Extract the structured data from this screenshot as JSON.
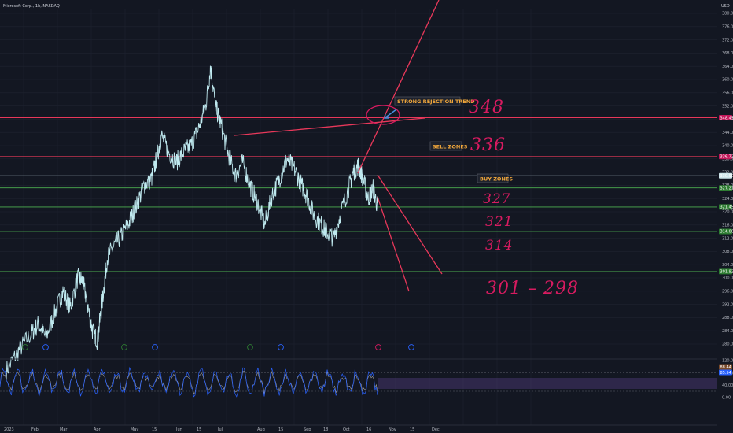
{
  "header": {
    "symbol": "Microsoft Corp., 1h, NASDAQ",
    "currency": "USD"
  },
  "colors": {
    "background": "#131722",
    "price_line": "#bfe9ef",
    "resistance": "#e8385a",
    "support": "#4caf50",
    "hand": "#d81b60",
    "annot_text": "#f2a83b",
    "osc_fast": "#2962ff",
    "osc_slow": "#9e9e9e",
    "osc_band": "#7e57c2"
  },
  "chart_data": [
    {
      "type": "line",
      "title": "",
      "series": [
        {
          "name": "",
          "points": [
            [
              0.0,
              272
            ],
            [
              0.5,
              278
            ],
            [
              1.0,
              283
            ],
            [
              1.3,
              286
            ],
            [
              1.6,
              282
            ],
            [
              2.0,
              290
            ],
            [
              2.3,
              296
            ],
            [
              2.6,
              291
            ],
            [
              2.9,
              300
            ],
            [
              3.1,
              299
            ],
            [
              3.3,
              292
            ],
            [
              3.5,
              284
            ],
            [
              3.7,
              281
            ],
            [
              3.9,
              293
            ],
            [
              4.1,
              306
            ],
            [
              4.4,
              310
            ],
            [
              4.7,
              313
            ],
            [
              5.0,
              317
            ],
            [
              5.3,
              322
            ],
            [
              5.6,
              328
            ],
            [
              5.9,
              330
            ],
            [
              6.1,
              336
            ],
            [
              6.3,
              343
            ],
            [
              6.6,
              338
            ],
            [
              6.9,
              335
            ],
            [
              7.2,
              338
            ],
            [
              7.5,
              340
            ],
            [
              7.8,
              345
            ],
            [
              8.1,
              352
            ],
            [
              8.3,
              364
            ],
            [
              8.5,
              352
            ],
            [
              8.7,
              347
            ],
            [
              9.0,
              338
            ],
            [
              9.3,
              331
            ],
            [
              9.6,
              335
            ],
            [
              9.9,
              328
            ],
            [
              10.2,
              323
            ],
            [
              10.5,
              316
            ],
            [
              10.8,
              325
            ],
            [
              11.1,
              330
            ],
            [
              11.4,
              336
            ],
            [
              11.7,
              333
            ],
            [
              12.0,
              328
            ],
            [
              12.2,
              325
            ],
            [
              12.5,
              319
            ],
            [
              12.8,
              316
            ],
            [
              13.0,
              314
            ],
            [
              13.3,
              312
            ],
            [
              13.6,
              320
            ],
            [
              13.9,
              327
            ],
            [
              14.1,
              332
            ],
            [
              14.3,
              334
            ],
            [
              14.5,
              330
            ],
            [
              14.7,
              324
            ],
            [
              14.9,
              327
            ],
            [
              15.1,
              321
            ]
          ]
        }
      ],
      "y_ticks": [
        "380.00",
        "376.00",
        "372.00",
        "368.00",
        "364.00",
        "360.00",
        "356.00",
        "352.00",
        "348.00",
        "344.00",
        "340.00",
        "336.00",
        "332.00",
        "328.00",
        "324.00",
        "320.00",
        "316.00",
        "312.00",
        "308.00",
        "304.00",
        "300.00",
        "296.00",
        "292.00",
        "288.00",
        "284.00",
        "280.00"
      ],
      "x_ticks": [
        "2023",
        "Feb",
        "Mar",
        "Apr",
        "May",
        "15",
        "Jun",
        "15",
        "Jul",
        "Aug",
        "15",
        "Sep",
        "18",
        "Oct",
        "16",
        "Nov",
        "15",
        "Dec"
      ],
      "price_tags": [
        "348.45",
        "336.72",
        "330.90",
        "327.21",
        "321.45",
        "314.06",
        "301.92"
      ],
      "levels": [
        348.45,
        336.72,
        330.9,
        327.21,
        321.45,
        314.06,
        301.92
      ]
    },
    {
      "type": "line",
      "title": "",
      "y_ticks": [
        "120.00",
        "80.00",
        "40.00",
        "0.00"
      ],
      "tags": [
        "88.44",
        "85.54"
      ],
      "band": [
        20,
        80
      ]
    }
  ],
  "annotations": {
    "strong_rejection": "STRONG REJECTION TREND",
    "sell_zones": "SELL ZONES",
    "buy_zones": "BUY ZONES",
    "hand_348": "348",
    "hand_336": "336",
    "hand_327": "327",
    "hand_321": "321",
    "hand_314": "314",
    "hand_range": "301 – 298"
  }
}
